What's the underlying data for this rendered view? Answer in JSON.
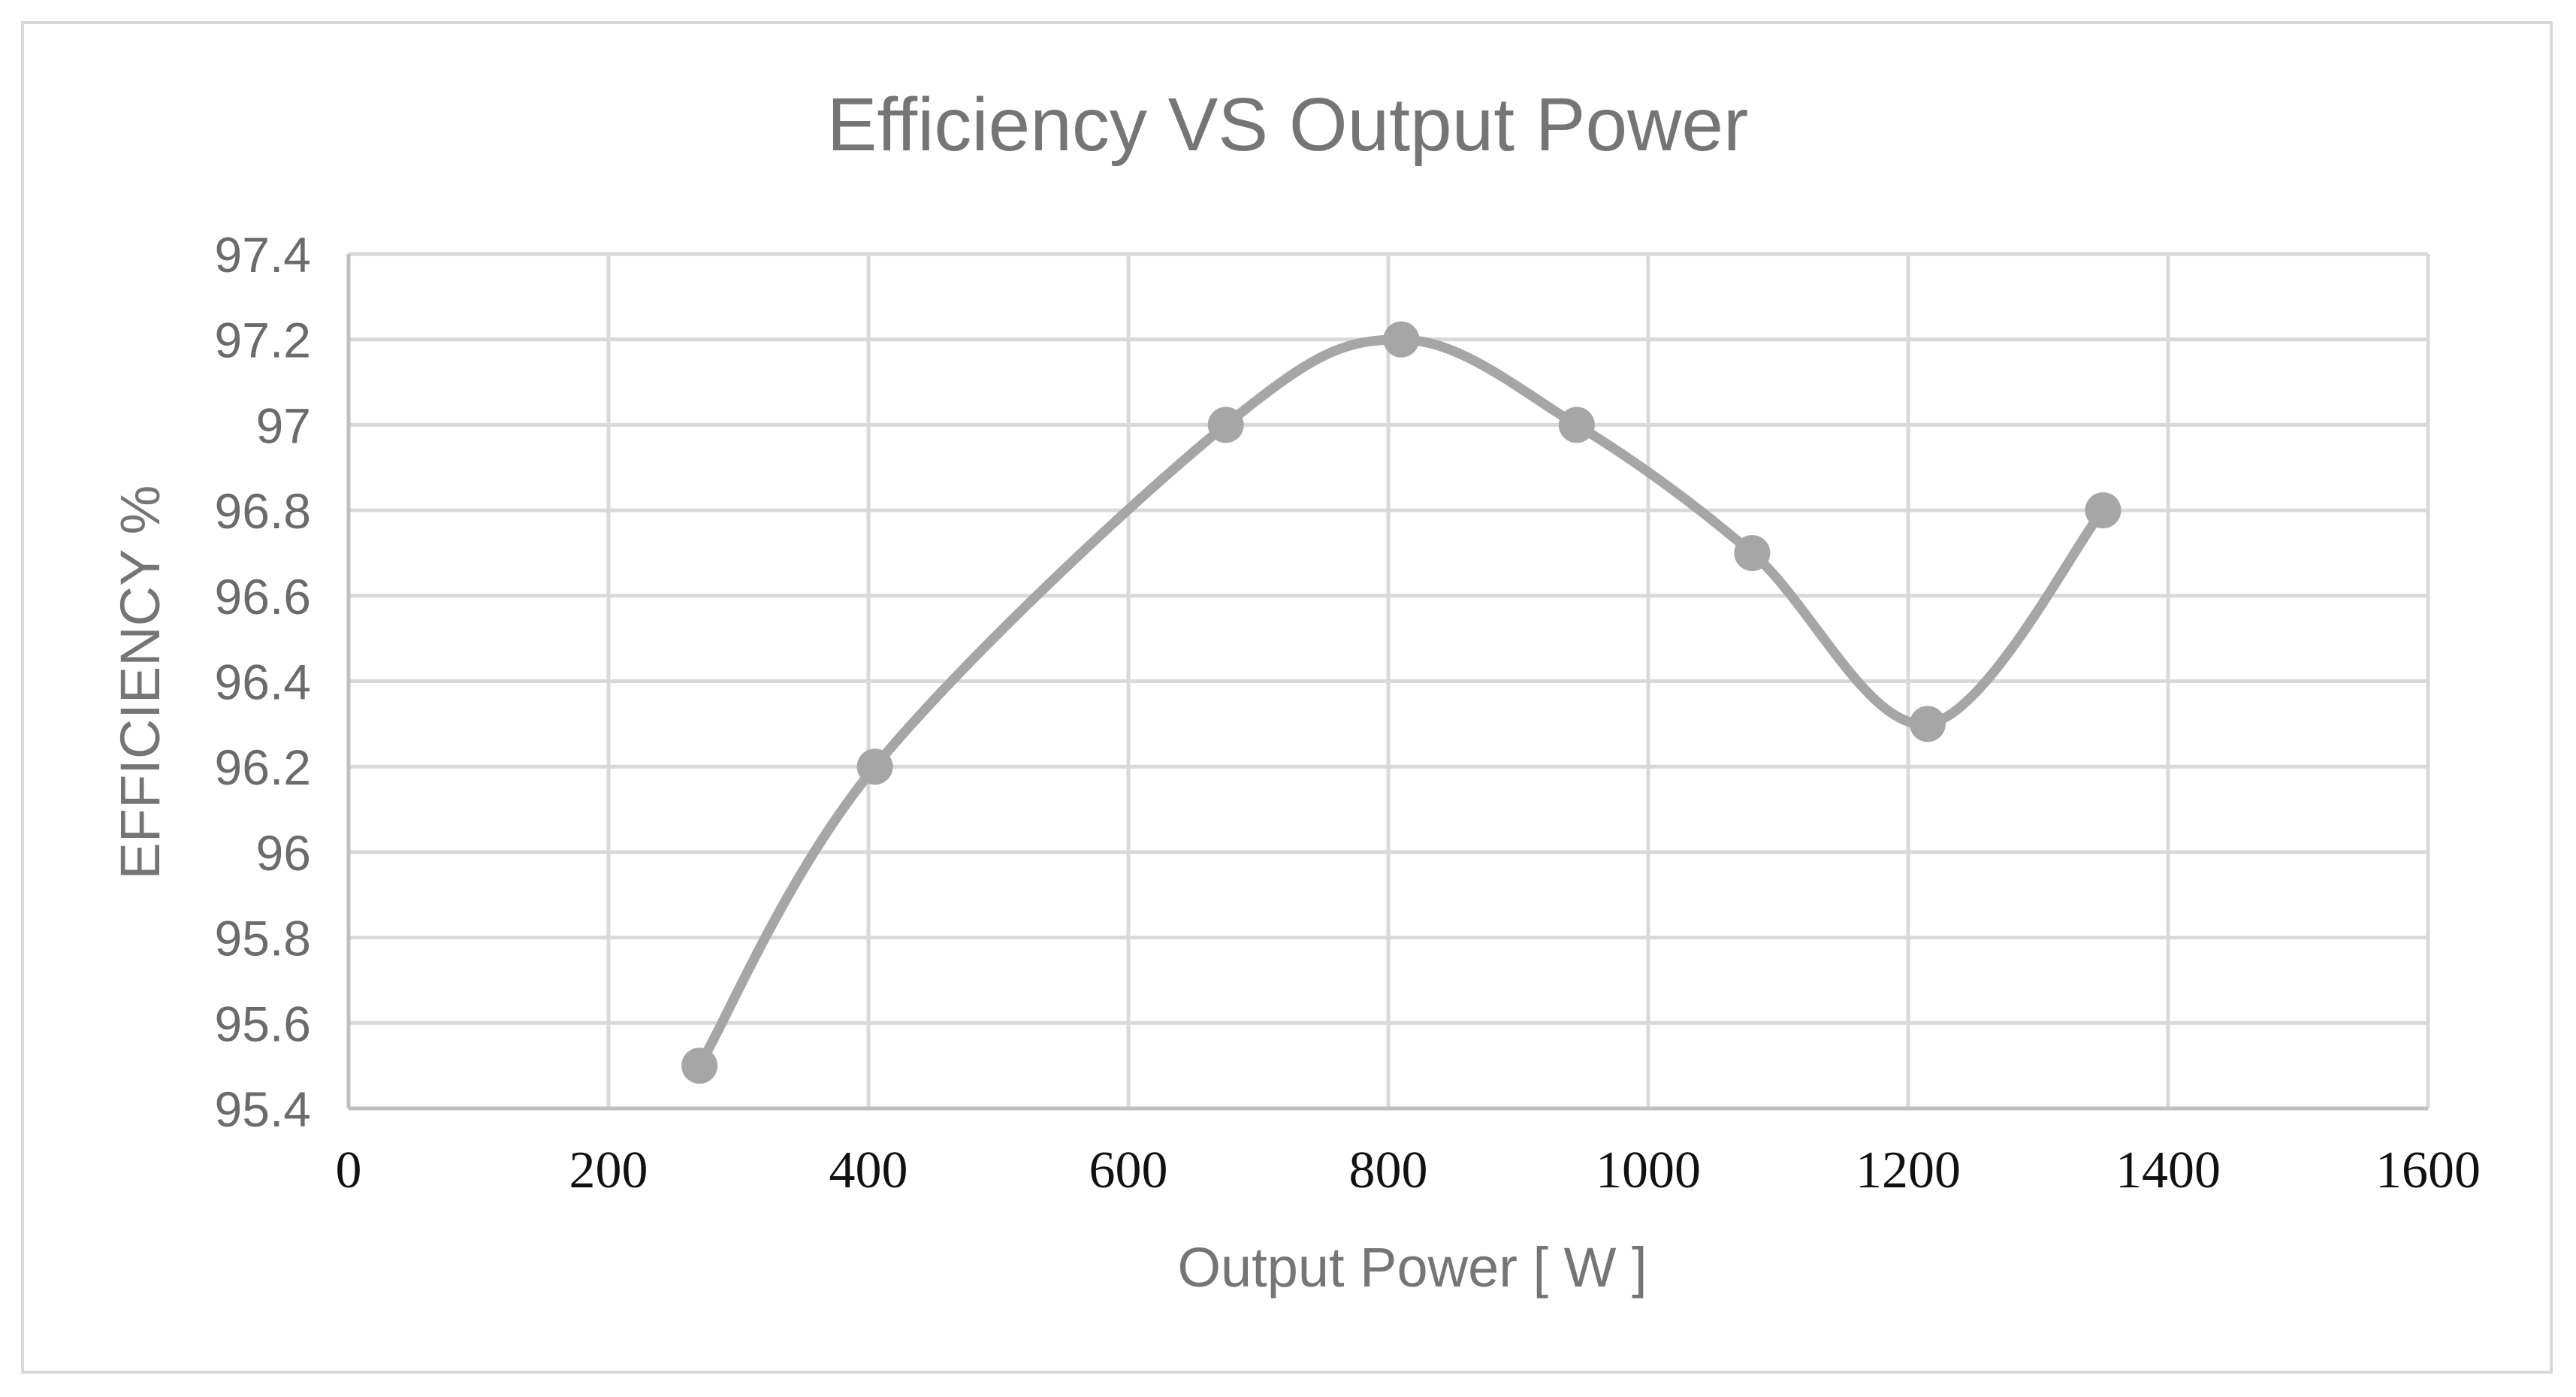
{
  "chart_data": {
    "type": "line",
    "title": "Efficiency VS Output Power",
    "xlabel": "Output Power [ W ]",
    "ylabel": "EFFICIENCY %",
    "xlim": [
      0,
      1600
    ],
    "ylim": [
      95.4,
      97.4
    ],
    "x_ticks": [
      "0",
      "200",
      "400",
      "600",
      "800",
      "1000",
      "1200",
      "1400",
      "1600"
    ],
    "y_ticks": [
      "95.4",
      "95.6",
      "95.8",
      "96",
      "96.2",
      "96.4",
      "96.6",
      "96.8",
      "97",
      "97.2",
      "97.4"
    ],
    "grid": true,
    "smooth": true,
    "series": [
      {
        "x": [
          270,
          405,
          675,
          810,
          945,
          1080,
          1215,
          1350
        ],
        "y": [
          95.5,
          96.2,
          97.0,
          97.2,
          97.0,
          96.7,
          96.3,
          96.8
        ]
      }
    ],
    "colors": {
      "line": "#a6a6a6",
      "marker": "#a6a6a6",
      "grid": "#d9d9d9",
      "axis": "#bfbfbf"
    }
  }
}
